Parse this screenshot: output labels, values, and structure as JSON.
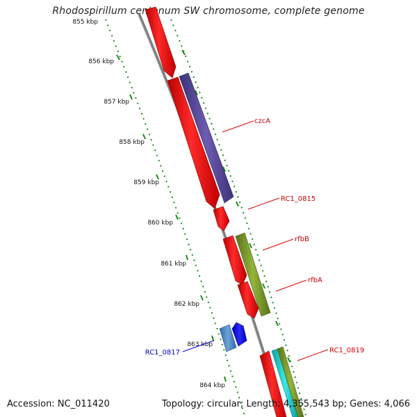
{
  "title": "Rhodospirillum centenum SW chromosome, complete genome",
  "footer": {
    "accession": "Accession: NC_011420",
    "summary": "Topology: circular; Length: 4,355,543 bp; Genes: 4,066"
  },
  "ticks": [
    {
      "label": "855 kbp"
    },
    {
      "label": "856 kbp"
    },
    {
      "label": "857 kbp"
    },
    {
      "label": "858 kbp"
    },
    {
      "label": "859 kbp"
    },
    {
      "label": "860 kbp"
    },
    {
      "label": "861 kbp"
    },
    {
      "label": "862 kbp"
    },
    {
      "label": "863 kbp"
    },
    {
      "label": "864 kbp"
    }
  ],
  "gene_labels": [
    {
      "name": "czcA",
      "color": "#cc0000"
    },
    {
      "name": "RC1_0815",
      "color": "#cc0000"
    },
    {
      "name": "rfbB",
      "color": "#cc0000"
    },
    {
      "name": "rfbA",
      "color": "#cc0000"
    },
    {
      "name": "RC1_0819",
      "color": "#cc0000"
    },
    {
      "name": "RC1_0817",
      "color": "#0000cc"
    }
  ],
  "colors": {
    "backbone": "#8c8c8c",
    "tick": "#1a8a1a",
    "cds": "#ff0000",
    "czcA_fill": "#5b4a9a",
    "rfb_fill": "#7a9a2a",
    "rev_cds": "#0000ee",
    "rev_fill": "#4a7fb5",
    "teal": "#1ec8c8"
  }
}
